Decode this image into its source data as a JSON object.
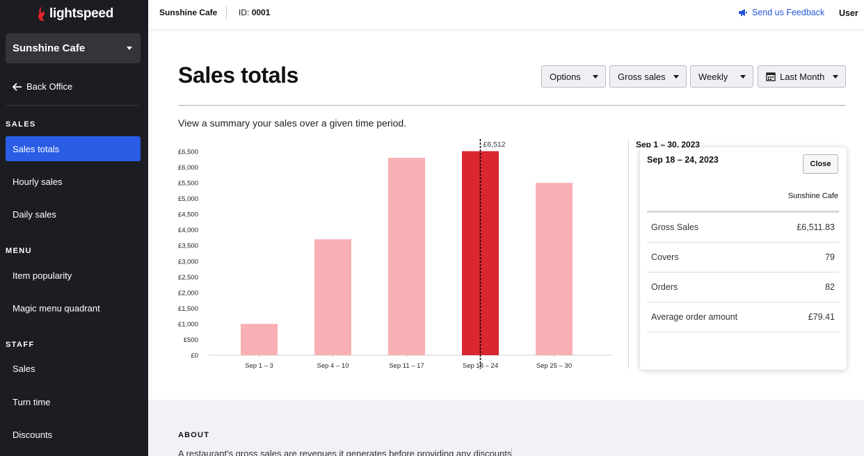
{
  "brand": {
    "name": "lightspeed",
    "color": "#e3232c"
  },
  "sidebar": {
    "store": "Sunshine Cafe",
    "back_label": "Back Office",
    "sections": {
      "sales": "SALES",
      "menu": "MENU",
      "staff": "STAFF"
    },
    "items": [
      {
        "label": "Sales totals",
        "active": true
      },
      {
        "label": "Hourly sales",
        "active": false
      },
      {
        "label": "Daily sales",
        "active": false
      },
      {
        "label": "Item popularity",
        "active": false
      },
      {
        "label": "Magic menu quadrant",
        "active": false
      },
      {
        "label": "Sales",
        "active": false
      },
      {
        "label": "Turn time",
        "active": false
      },
      {
        "label": "Discounts",
        "active": false
      }
    ]
  },
  "topbar": {
    "store": "Sunshine Cafe",
    "id_label": "ID:",
    "id_value": "0001",
    "feedback": "Send us Feedback",
    "user": "User"
  },
  "main": {
    "title": "Sales totals",
    "subtitle": "View a summary your sales over a given time period.",
    "controls": {
      "options": "Options",
      "metric": "Gross sales",
      "interval": "Weekly",
      "period": "Last Month"
    },
    "range_title": "Sep 1 – 30, 2023"
  },
  "chart_data": {
    "type": "bar",
    "categories": [
      "Sep 1 – 3",
      "Sep 4 – 10",
      "Sep 11 – 17",
      "Sep 18 – 24",
      "Sep 25 – 30"
    ],
    "values": [
      1000,
      3700,
      6300,
      6511.83,
      5500
    ],
    "highlighted_index": 3,
    "highlight_label": "£6,512",
    "yticks": [
      "£0",
      "£500",
      "£1,000",
      "£1,500",
      "£2,000",
      "£2,500",
      "£3,000",
      "£3,500",
      "£4,000",
      "£4,500",
      "£5,000",
      "£5,500",
      "£6,000",
      "£6,500"
    ],
    "ylim": [
      0,
      6500
    ],
    "bar_color": "#f9b0b4",
    "highlight_color": "#d9262f"
  },
  "popup": {
    "title": "Sep 18 – 24, 2023",
    "close": "Close",
    "column": "Sunshine Cafe",
    "rows": [
      {
        "label": "Gross Sales",
        "value": "£6,511.83"
      },
      {
        "label": "Covers",
        "value": "79"
      },
      {
        "label": "Orders",
        "value": "82"
      },
      {
        "label": "Average order amount",
        "value": "£79.41"
      }
    ]
  },
  "about": {
    "heading": "ABOUT",
    "text": "A restaurant's gross sales are revenues it generates before providing any discounts"
  }
}
